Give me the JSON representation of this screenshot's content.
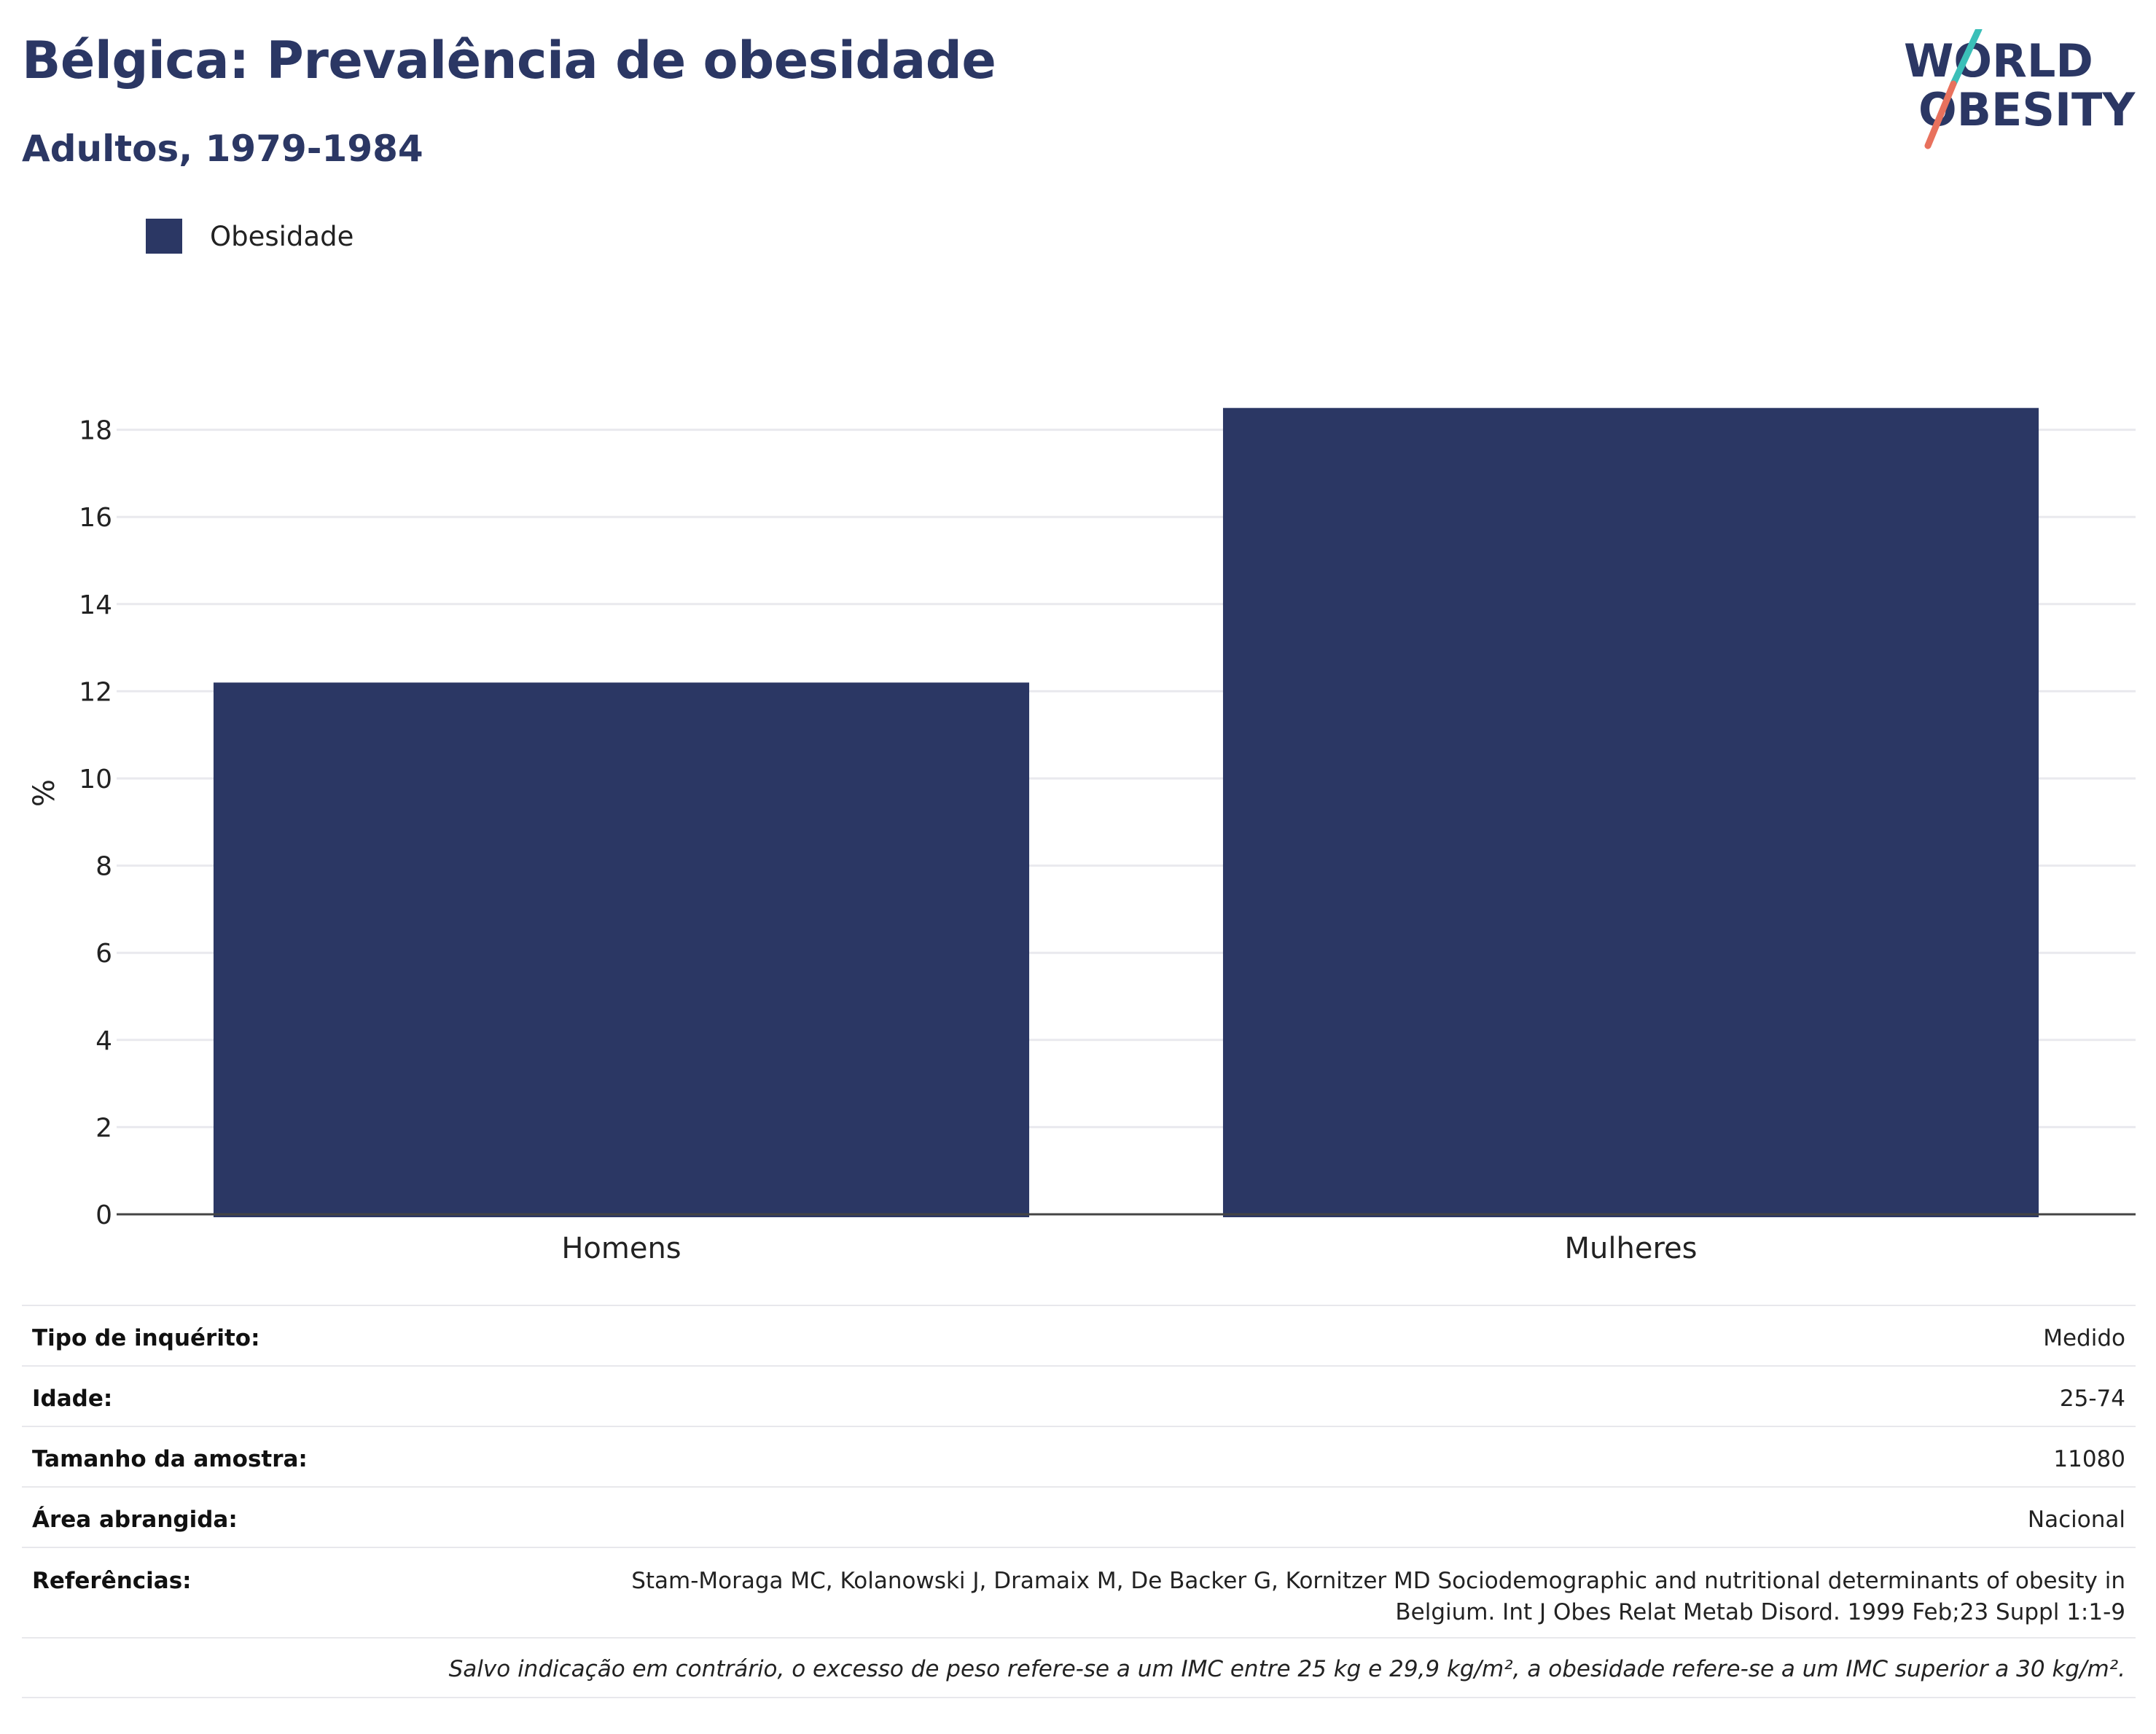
{
  "header": {
    "title": "Bélgica: Prevalência de obesidade",
    "subtitle": "Adultos, 1979-1984"
  },
  "logo": {
    "line1": "WORLD",
    "line2": "OBESITY",
    "colors": {
      "text": "#2b3764",
      "slash_top": "#3bbfb8",
      "slash_bottom": "#e8715d"
    }
  },
  "colors": {
    "bar": "#2b3764",
    "grid": "#e9e9ee",
    "axis": "#444444"
  },
  "chart_data": {
    "type": "bar",
    "categories": [
      "Homens",
      "Mulheres"
    ],
    "series": [
      {
        "name": "Obesidade",
        "values": [
          12.2,
          18.5
        ]
      }
    ],
    "xlabel": "",
    "ylabel": "%",
    "ylim": [
      0,
      19.5
    ],
    "yticks": [
      0,
      2,
      4,
      6,
      8,
      10,
      12,
      14,
      16,
      18
    ],
    "grid": true,
    "legend": "top-left"
  },
  "info": {
    "rows": [
      {
        "key": "Tipo de inquérito:",
        "value": "Medido"
      },
      {
        "key": "Idade:",
        "value": "25-74"
      },
      {
        "key": "Tamanho da amostra:",
        "value": "11080"
      },
      {
        "key": "Área abrangida:",
        "value": "Nacional"
      }
    ],
    "references": {
      "key": "Referências:",
      "line1": "Stam-Moraga MC, Kolanowski J, Dramaix M, De Backer G, Kornitzer MD Sociodemographic and nutritional determinants of obesity in",
      "line2": "Belgium. Int J Obes Relat Metab Disord. 1999 Feb;23 Suppl 1:1-9"
    },
    "note": "Salvo indicação em contrário, o excesso de peso refere-se a um IMC entre 25 kg e 29,9 kg/m², a obesidade refere-se a um IMC superior a 30 kg/m²."
  }
}
